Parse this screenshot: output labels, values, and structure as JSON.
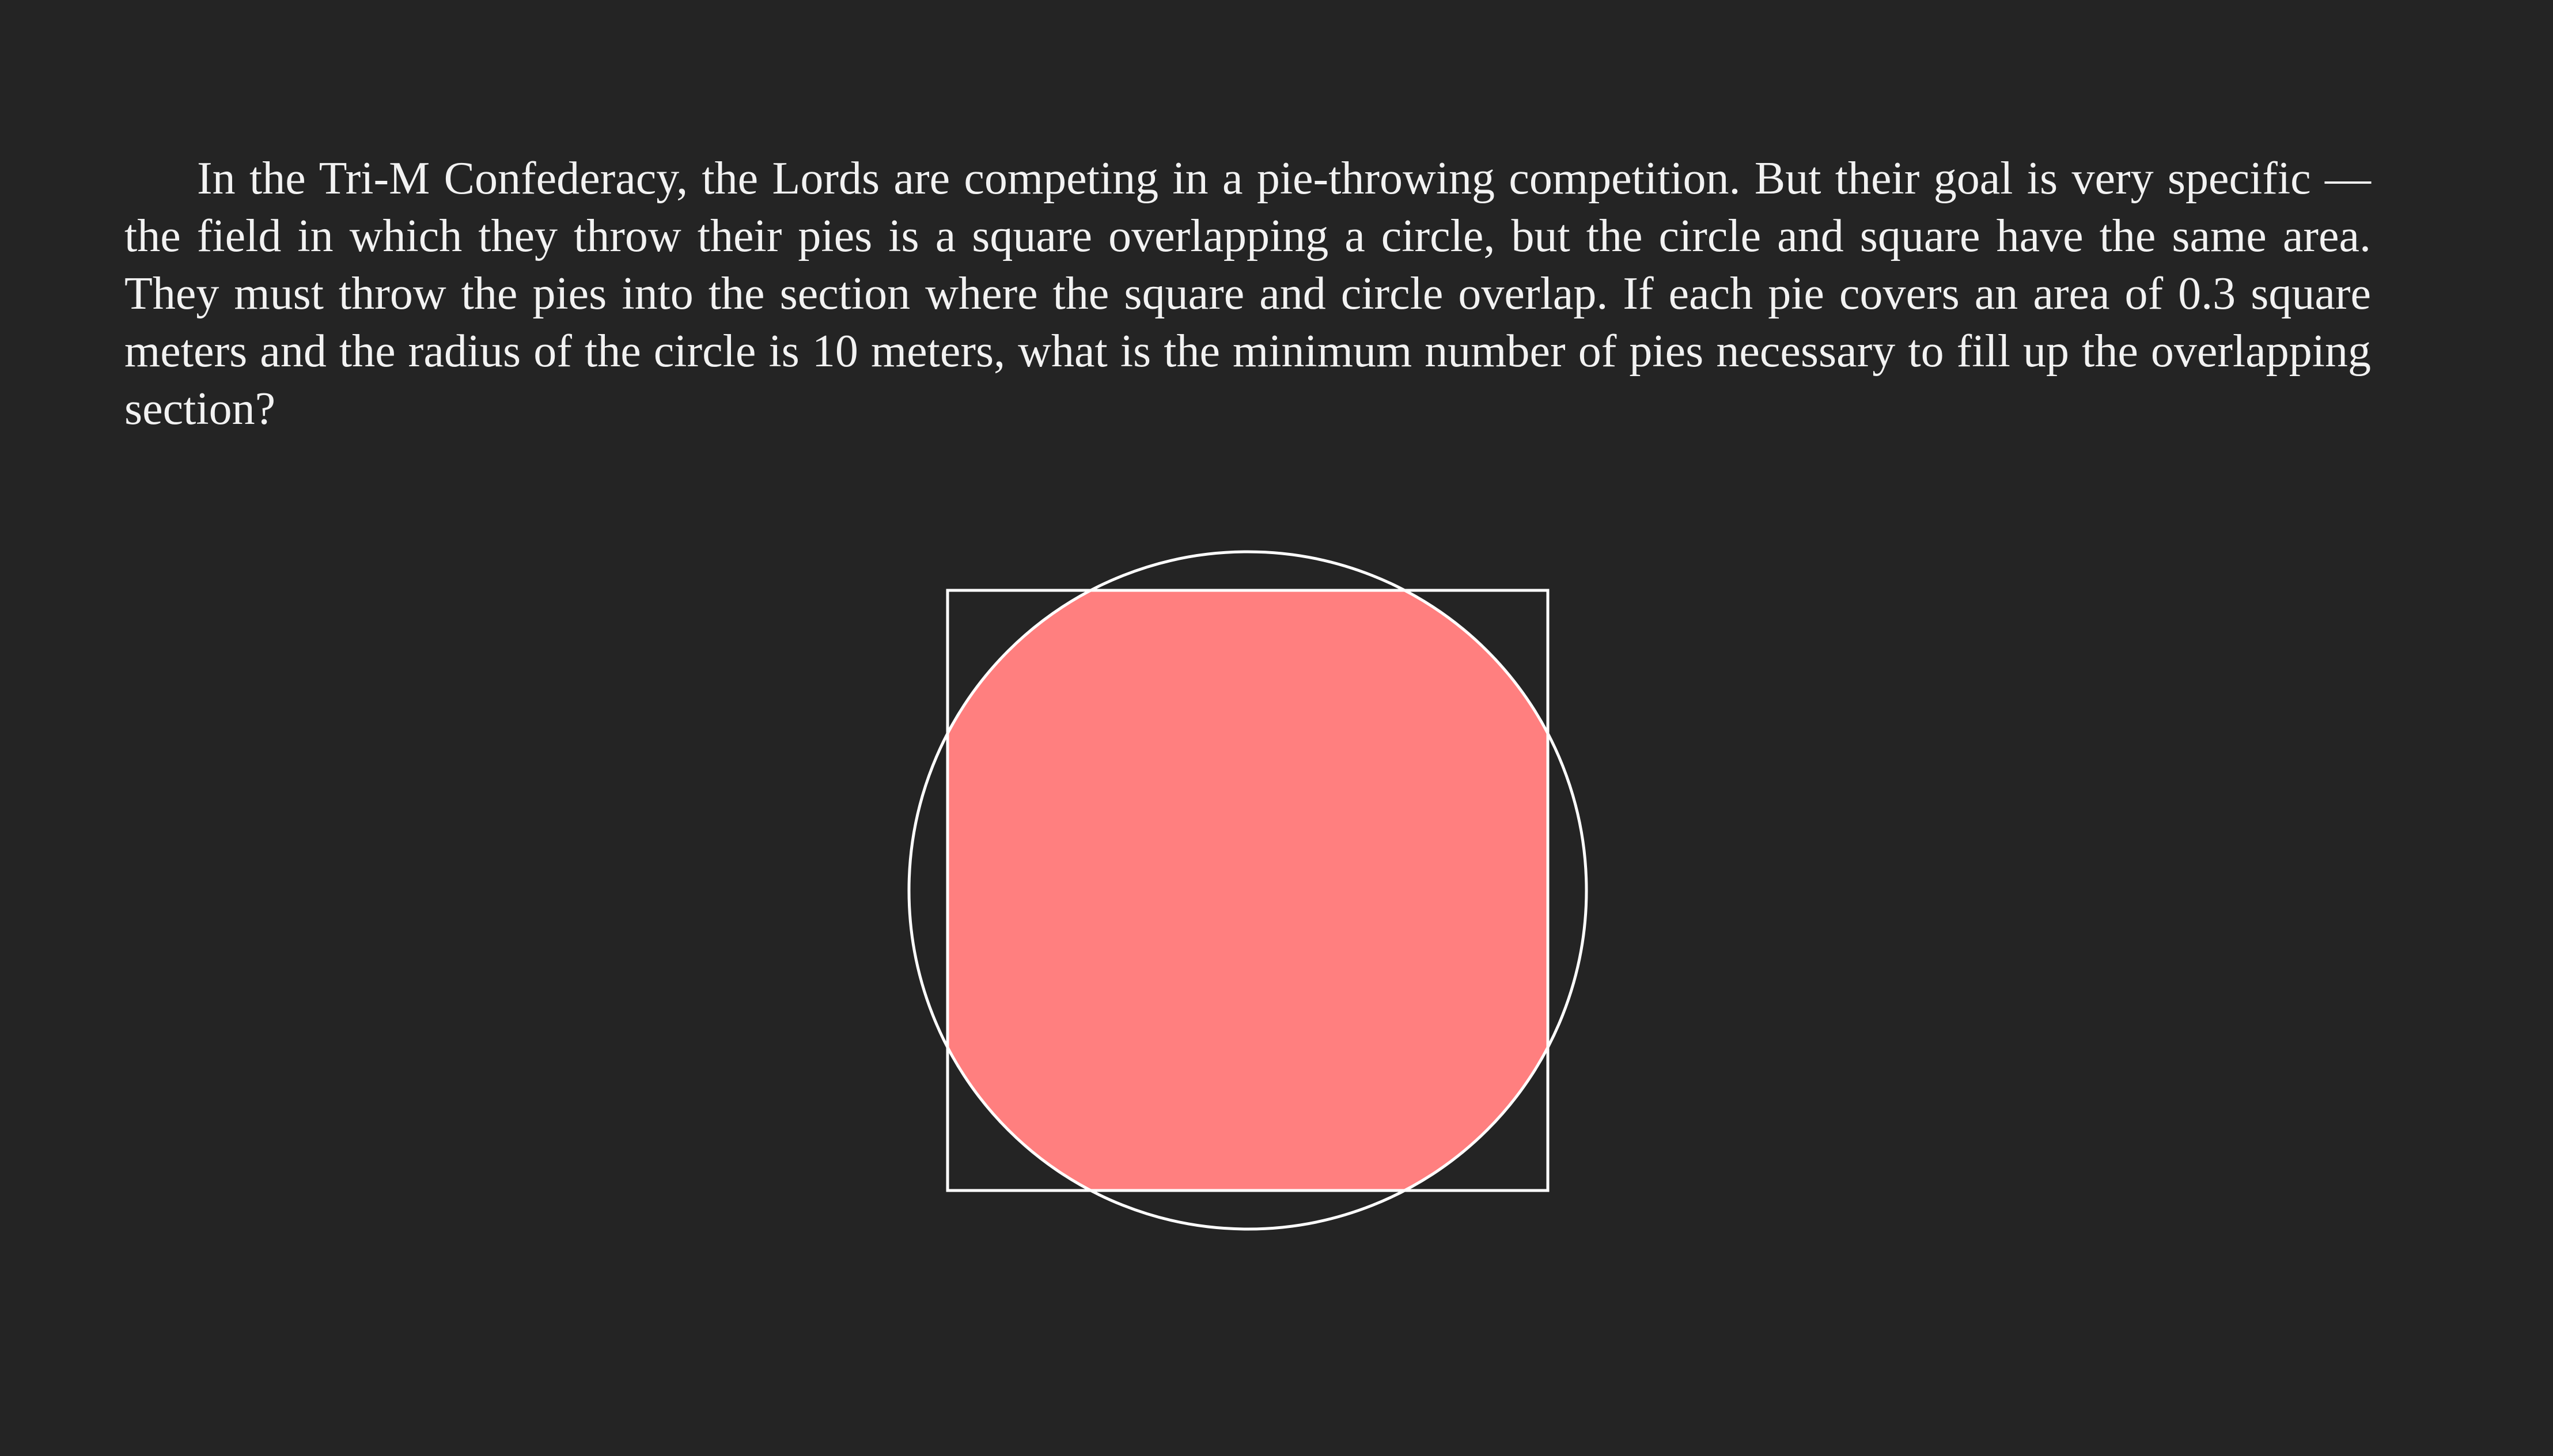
{
  "problem": {
    "text": "In the Tri-M Confederacy, the Lords are competing in a pie-throwing competition. But their goal is very specific — the field in which they throw their pies is a square overlapping a circle, but the circle and square have the same area. They must throw the pies into the section where the square and circle overlap. If each pie covers an area of 0.3 square meters and the radius of the circle is 10 meters, what is the minimum number of pies necessary to fill up the overlapping section?"
  },
  "colors": {
    "background": "#242424",
    "text": "#f2f2f2",
    "outline": "#ffffff",
    "overlap_fill": "#ff7f7f"
  }
}
